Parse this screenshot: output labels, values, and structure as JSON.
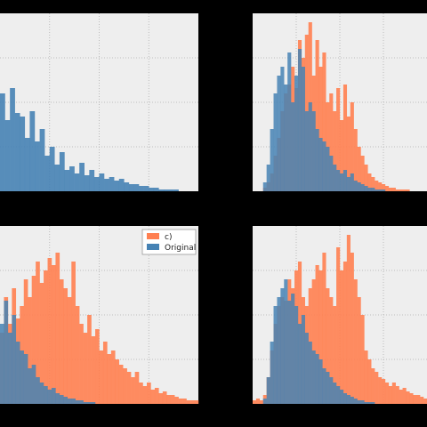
{
  "colors": {
    "figure_background": "#000000",
    "axes_background": "#eeeeee",
    "grid": "#b0b0b0",
    "original": "#4682b4",
    "modified": "#ff7f50"
  },
  "legend": {
    "entries": [
      {
        "label": "c)",
        "color": "#ff7f50"
      },
      {
        "label": "Original",
        "color": "#4682b4"
      }
    ],
    "panel": "bottom-left",
    "location": "upper-right"
  },
  "chart_data": [
    {
      "panel": "top-left",
      "type": "bar",
      "xlim": [
        0,
        100
      ],
      "ylim": [
        0,
        100
      ],
      "grid": true,
      "series": [
        {
          "color": "#4682b4",
          "values": [
            55,
            40,
            58,
            44,
            42,
            30,
            45,
            28,
            35,
            20,
            25,
            15,
            22,
            12,
            14,
            10,
            16,
            9,
            12,
            8,
            10,
            7,
            8,
            6,
            7,
            5,
            4,
            4,
            3,
            3,
            2,
            2,
            1,
            1,
            1,
            1,
            0,
            0,
            0,
            0
          ]
        }
      ]
    },
    {
      "panel": "top-right",
      "type": "bar",
      "xlim": [
        0,
        100
      ],
      "ylim": [
        0,
        100
      ],
      "grid": true,
      "series": [
        {
          "color": "#ff7f50",
          "values": [
            0,
            0,
            0,
            2,
            5,
            10,
            20,
            30,
            45,
            55,
            60,
            70,
            58,
            85,
            75,
            88,
            95,
            65,
            85,
            70,
            78,
            50,
            55,
            45,
            58,
            40,
            60,
            42,
            50,
            35,
            25,
            20,
            15,
            10,
            8,
            6,
            5,
            4,
            3,
            2,
            2,
            1,
            1,
            1,
            1,
            0,
            0,
            0,
            0,
            0
          ]
        },
        {
          "color": "#4682b4",
          "values": [
            0,
            0,
            0,
            5,
            15,
            35,
            55,
            65,
            70,
            60,
            78,
            50,
            65,
            80,
            70,
            45,
            50,
            45,
            35,
            30,
            28,
            25,
            20,
            15,
            12,
            10,
            12,
            8,
            10,
            6,
            5,
            4,
            3,
            2,
            2,
            1,
            1,
            1,
            0,
            0,
            0,
            0,
            0,
            0,
            0,
            0,
            0,
            0,
            0,
            0
          ]
        }
      ]
    },
    {
      "panel": "bottom-left",
      "type": "bar",
      "xlim": [
        0,
        100
      ],
      "ylim": [
        0,
        100
      ],
      "grid": true,
      "series": [
        {
          "color": "#ff7f50",
          "values": [
            40,
            60,
            45,
            65,
            48,
            55,
            70,
            60,
            72,
            80,
            68,
            75,
            82,
            78,
            85,
            70,
            65,
            60,
            80,
            55,
            45,
            40,
            50,
            38,
            42,
            30,
            35,
            28,
            30,
            25,
            22,
            20,
            18,
            15,
            18,
            12,
            10,
            12,
            8,
            9,
            6,
            7,
            5,
            5,
            4,
            3,
            3,
            2,
            2,
            2
          ]
        },
        {
          "color": "#4682b4",
          "values": [
            45,
            58,
            40,
            50,
            35,
            30,
            28,
            20,
            22,
            15,
            12,
            10,
            8,
            9,
            6,
            5,
            4,
            3,
            3,
            2,
            2,
            1,
            1,
            1,
            0,
            0,
            0,
            0,
            0,
            0,
            0,
            0,
            0,
            0,
            0,
            0,
            0,
            0,
            0,
            0,
            0,
            0,
            0,
            0,
            0,
            0,
            0,
            0,
            0,
            0
          ]
        }
      ]
    },
    {
      "panel": "bottom-right",
      "type": "bar",
      "xlim": [
        0,
        100
      ],
      "ylim": [
        0,
        100
      ],
      "grid": true,
      "series": [
        {
          "color": "#ff7f50",
          "values": [
            2,
            3,
            2,
            5,
            15,
            30,
            45,
            55,
            60,
            58,
            70,
            65,
            75,
            80,
            60,
            55,
            65,
            70,
            78,
            75,
            85,
            65,
            60,
            55,
            88,
            75,
            80,
            95,
            85,
            70,
            60,
            50,
            30,
            25,
            20,
            18,
            15,
            14,
            12,
            10,
            12,
            10,
            8,
            9,
            7,
            6,
            5,
            5,
            4,
            3
          ]
        },
        {
          "color": "#4682b4",
          "values": [
            0,
            0,
            0,
            3,
            15,
            35,
            55,
            60,
            65,
            70,
            58,
            62,
            55,
            45,
            50,
            40,
            35,
            30,
            28,
            25,
            20,
            18,
            15,
            12,
            10,
            8,
            6,
            5,
            4,
            3,
            2,
            2,
            1,
            1,
            1,
            0,
            0,
            0,
            0,
            0,
            0,
            0,
            0,
            0,
            0,
            0,
            0,
            0,
            0,
            0
          ]
        }
      ]
    }
  ]
}
